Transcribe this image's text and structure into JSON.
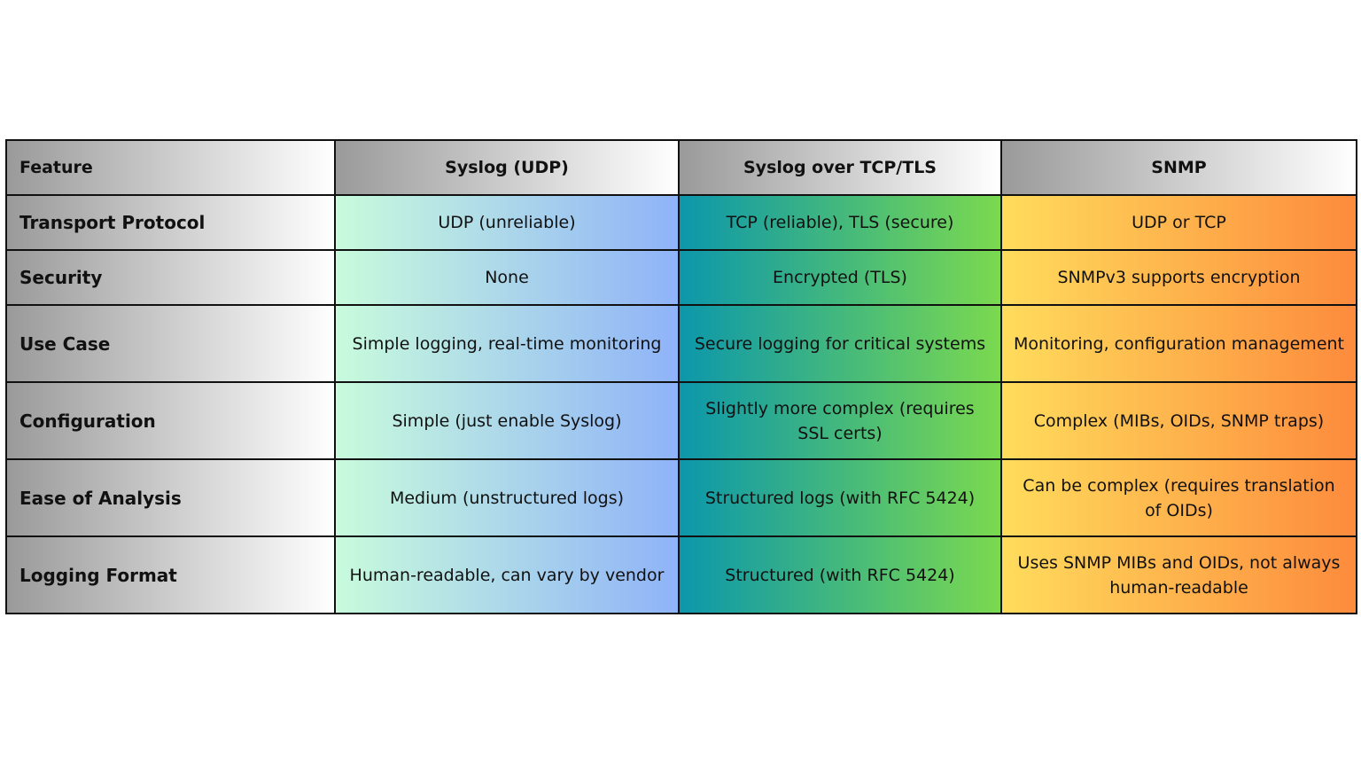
{
  "table": {
    "header": [
      "Feature",
      "Syslog (UDP)",
      "Syslog over TCP/TLS",
      "SNMP"
    ],
    "rows": [
      [
        "Transport Protocol",
        "UDP (unreliable)",
        "TCP (reliable), TLS (secure)",
        "UDP or TCP"
      ],
      [
        "Security",
        "None",
        "Encrypted (TLS)",
        "SNMPv3 supports encryption"
      ],
      [
        "Use Case",
        "Simple logging, real-time monitoring",
        "Secure logging for critical systems",
        "Monitoring, configuration management"
      ],
      [
        "Configuration",
        "Simple (just enable Syslog)",
        "Slightly more complex (requires SSL certs)",
        "Complex (MIBs, OIDs, SNMP traps)"
      ],
      [
        "Ease of Analysis",
        "Medium (unstructured logs)",
        "Structured logs (with RFC 5424)",
        "Can be complex (requires translation of OIDs)"
      ],
      [
        "Logging Format",
        "Human-readable, can vary by vendor",
        "Structured (with RFC 5424)",
        "Uses SNMP MIBs and OIDs, not always human-readable"
      ]
    ]
  }
}
